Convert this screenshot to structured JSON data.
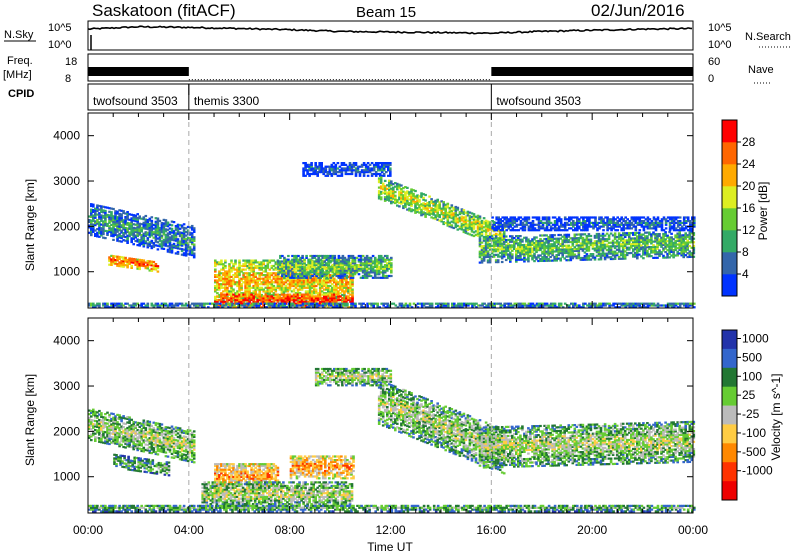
{
  "header": {
    "radar": "Saskatoon (fitACF)",
    "beam": "Beam 15",
    "date": "02/Jun/2016"
  },
  "top_panels": {
    "nsky_label": "N.Sky",
    "nsky_ticks": [
      "10^5",
      "10^0"
    ],
    "nsearch_label": "N.Search",
    "freq_label": "Freq.",
    "freq_unit": "[MHz]",
    "freq_ticks": [
      "18",
      "8"
    ],
    "nave_label": "Nave",
    "nave_ticks": [
      "60",
      "0"
    ],
    "cpid_label": "CPID",
    "cpid_segments": [
      {
        "name": "twofsound 3503",
        "start": 0,
        "end": 4.0
      },
      {
        "name": "themis 3300",
        "start": 4.0,
        "end": 16.0
      },
      {
        "name": "twofsound 3503",
        "start": 16.0,
        "end": 24.0
      }
    ]
  },
  "xaxis": {
    "label": "Time UT",
    "ticks": [
      "00:00",
      "04:00",
      "08:00",
      "12:00",
      "16:00",
      "20:00",
      "00:00"
    ],
    "range_hours": [
      0,
      24
    ]
  },
  "chart_data": [
    {
      "type": "heatmap",
      "title": "",
      "quantity": "Power",
      "colorbar_label": "Power [dB]",
      "colorbar_ticks": [
        "4",
        "8",
        "12",
        "16",
        "20",
        "24",
        "28"
      ],
      "colorbar_colors": [
        "#0033ff",
        "#3366aa",
        "#33aa66",
        "#66cc33",
        "#ddee22",
        "#ffaa00",
        "#ff6600",
        "#ff0000"
      ],
      "ylabel": "Slant Range [km]",
      "yticks": [
        "4000",
        "3000",
        "2000",
        "1000"
      ],
      "ylim": [
        200,
        4500
      ],
      "xlim": [
        0,
        24
      ],
      "echo_regions": [
        {
          "t0": 0.0,
          "t1": 4.2,
          "r_center": 1900,
          "width": 350,
          "slope": -120,
          "level": 2
        },
        {
          "t0": 0.8,
          "t1": 2.8,
          "r_center": 1180,
          "width": 120,
          "slope": -80,
          "level": 6
        },
        {
          "t0": 5.0,
          "t1": 10.5,
          "r_center": 800,
          "width": 450,
          "slope": 0,
          "level": 5
        },
        {
          "t0": 5.0,
          "t1": 10.5,
          "r_center": 350,
          "width": 150,
          "slope": 0,
          "level": 7
        },
        {
          "t0": 7.5,
          "t1": 12.0,
          "r_center": 1100,
          "width": 250,
          "slope": 0,
          "level": 3
        },
        {
          "t0": 8.5,
          "t1": 12.0,
          "r_center": 3250,
          "width": 150,
          "slope": 0,
          "level": 1
        },
        {
          "t0": 11.5,
          "t1": 16.5,
          "r_center": 2300,
          "width": 250,
          "slope": -220,
          "level": 4
        },
        {
          "t0": 15.5,
          "t1": 24.0,
          "r_center": 1550,
          "width": 300,
          "slope": 15,
          "level": 3
        },
        {
          "t0": 16.0,
          "t1": 24.0,
          "r_center": 2050,
          "width": 150,
          "slope": 0,
          "level": 1
        },
        {
          "t0": 0.0,
          "t1": 24.0,
          "r_center": 260,
          "width": 60,
          "slope": 0,
          "level": 2
        }
      ]
    },
    {
      "type": "heatmap",
      "title": "",
      "quantity": "Velocity",
      "colorbar_label": "Velocity [m s^-1]",
      "colorbar_ticks": [
        "1000",
        "500",
        "100",
        "25",
        "-25",
        "-100",
        "-500",
        "-1000"
      ],
      "colorbar_colors": [
        "#2233aa",
        "#3366cc",
        "#227733",
        "#66cc33",
        "#bbbbbb",
        "#ffcc44",
        "#ff8800",
        "#ff3300",
        "#ee0000"
      ],
      "ylabel": "Slant Range [km]",
      "yticks": [
        "4000",
        "3000",
        "2000",
        "1000"
      ],
      "ylim": [
        200,
        4500
      ],
      "xlim": [
        0,
        24
      ],
      "echo_regions": [
        {
          "t0": 0.0,
          "t1": 4.2,
          "r_center": 1900,
          "width": 350,
          "slope": -120,
          "level": 4
        },
        {
          "t0": 1.0,
          "t1": 3.2,
          "r_center": 1250,
          "width": 150,
          "slope": -80,
          "level": 3
        },
        {
          "t0": 5.0,
          "t1": 7.5,
          "r_center": 1000,
          "width": 300,
          "slope": 0,
          "level": 6
        },
        {
          "t0": 8.0,
          "t1": 10.5,
          "r_center": 1200,
          "width": 250,
          "slope": 0,
          "level": 6
        },
        {
          "t0": 4.5,
          "t1": 10.5,
          "r_center": 600,
          "width": 300,
          "slope": 0,
          "level": 4
        },
        {
          "t0": 9.0,
          "t1": 12.0,
          "r_center": 3200,
          "width": 200,
          "slope": 0,
          "level": 4
        },
        {
          "t0": 11.5,
          "t1": 16.5,
          "r_center": 2100,
          "width": 500,
          "slope": -220,
          "level": 4
        },
        {
          "t0": 15.5,
          "t1": 24.0,
          "r_center": 1700,
          "width": 450,
          "slope": 15,
          "level": 4
        },
        {
          "t0": 0.0,
          "t1": 24.0,
          "r_center": 300,
          "width": 80,
          "slope": 0,
          "level": 3
        }
      ]
    },
    {
      "type": "line",
      "title": "",
      "quantity": "N.Sky",
      "x_hours": [
        0,
        2,
        4,
        6,
        8,
        10,
        12,
        14,
        16,
        18,
        20,
        22,
        24
      ],
      "values_log10": [
        3.6,
        4.0,
        3.9,
        3.7,
        3.5,
        3.2,
        3.1,
        3.0,
        2.9,
        3.2,
        3.4,
        3.6,
        3.7
      ]
    },
    {
      "type": "bar",
      "title": "",
      "quantity": "Nave",
      "segments": [
        {
          "t0": 0.0,
          "t1": 4.0,
          "value": 30
        },
        {
          "t0": 4.0,
          "t1": 16.0,
          "value": 3
        },
        {
          "t0": 16.0,
          "t1": 24.0,
          "value": 30
        }
      ]
    }
  ]
}
